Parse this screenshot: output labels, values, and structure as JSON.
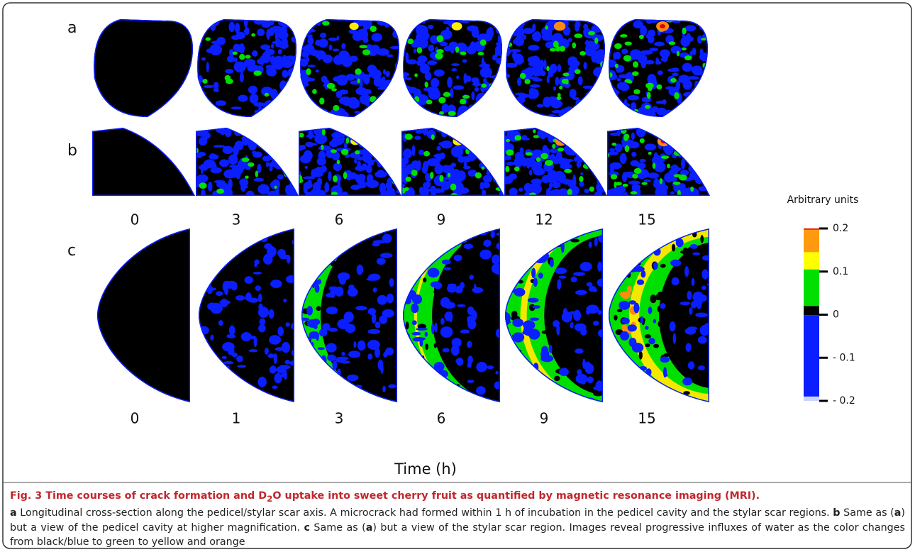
{
  "figure": {
    "panel_labels": [
      "a",
      "b",
      "c"
    ],
    "times_ab": [
      "0",
      "3",
      "6",
      "9",
      "12",
      "15"
    ],
    "times_c": [
      "0",
      "1",
      "3",
      "6",
      "9",
      "15"
    ],
    "x_label": "Time (h)",
    "colorbar": {
      "title": "Arbitrary units",
      "ylim": [
        -0.2,
        0.2
      ],
      "yticks": [
        {
          "value": -0.2,
          "label": "- 0.2"
        },
        {
          "value": -0.1,
          "label": "- 0.1"
        },
        0,
        0.1,
        0.2
      ]
    }
  },
  "caption": {
    "title_parts": [
      "Fig. 3 Time courses of crack formation and D",
      "2",
      "O uptake into sweet cherry fruit as quantified by magnetic resonance imaging (MRI)."
    ],
    "body": [
      "a",
      " Longitudinal cross-section along the pedicel/stylar scar axis. A microcrack had formed within 1 h of incubation in the pedicel cavity and the stylar scar regions. ",
      "b",
      " Same as (",
      "a",
      ") but a view of the pedicel cavity at higher magnification. ",
      "c",
      " Same as (",
      "a",
      ") but a view of the stylar scar region. Images reveal progressive influxes of water as the color changes from black/blue to green to yellow and orange"
    ]
  }
}
